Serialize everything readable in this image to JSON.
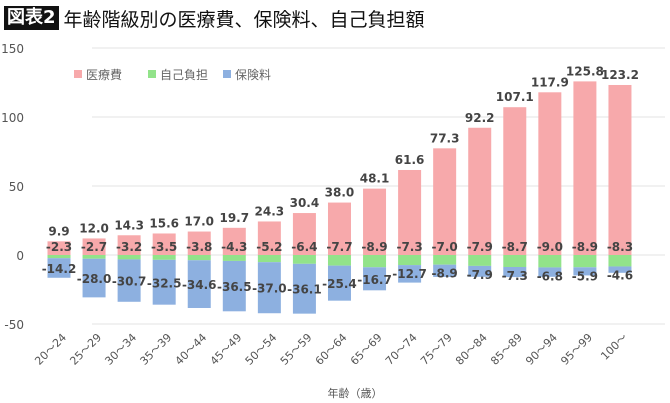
{
  "chart_data": {
    "type": "bar",
    "title_badge": "図表2",
    "title": "年齢階級別の医療費、保険料、自己負担額",
    "xlabel": "年齢（歳）",
    "ylabel": "",
    "ylim": [
      -50,
      150
    ],
    "yticks": [
      150,
      100,
      50,
      0,
      -50
    ],
    "grid": true,
    "legend_placement": "top-left",
    "stacked_negative": true,
    "categories": [
      "20～24",
      "25～29",
      "30～34",
      "35～39",
      "40～44",
      "45～49",
      "50～54",
      "55～59",
      "60～64",
      "65～69",
      "70～74",
      "75～79",
      "80～84",
      "85～89",
      "90～94",
      "95～99",
      "100～"
    ],
    "series": [
      {
        "name": "医療費",
        "color": "#f7a9ab",
        "values": [
          9.9,
          12.0,
          14.3,
          15.6,
          17.0,
          19.7,
          24.3,
          30.4,
          38.0,
          48.1,
          61.6,
          77.3,
          92.2,
          107.1,
          117.9,
          125.8,
          123.2
        ]
      },
      {
        "name": "自己負担",
        "color": "#92e38a",
        "values": [
          -2.3,
          -2.7,
          -3.2,
          -3.5,
          -3.8,
          -4.3,
          -5.2,
          -6.4,
          -7.7,
          -8.9,
          -7.3,
          -7.0,
          -7.9,
          -8.7,
          -9.0,
          -8.9,
          -8.3
        ]
      },
      {
        "name": "保険料",
        "color": "#8db0e0",
        "values": [
          -14.2,
          -28.0,
          -30.7,
          -32.5,
          -34.6,
          -36.5,
          -37.0,
          -36.1,
          -25.4,
          -16.7,
          -12.7,
          -8.9,
          -7.9,
          -7.3,
          -6.8,
          -5.9,
          -4.6
        ]
      }
    ]
  }
}
